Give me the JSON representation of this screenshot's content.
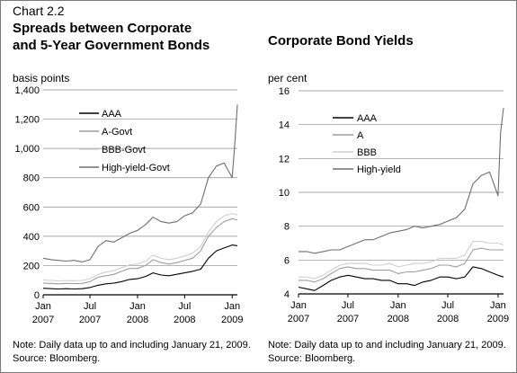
{
  "chart_number": "Chart 2.2",
  "notes": {
    "left": [
      "Note: Daily data up to and including January 21, 2009.",
      "Source: Bloomberg."
    ],
    "right": [
      "Note: Daily data up to and including January 21, 2009.",
      "Source: Bloomberg."
    ]
  },
  "chart_data": [
    {
      "type": "line",
      "title": [
        "Spreads between Corporate",
        "and 5-Year Government Bonds"
      ],
      "unit_label": "basis points",
      "ylim": [
        0,
        1400
      ],
      "y_ticks": [
        0,
        200,
        400,
        600,
        800,
        1000,
        1200,
        1400
      ],
      "y_tick_labels": [
        "0",
        "200",
        "400",
        "600",
        "800",
        "1,000",
        "1,200",
        "1,400"
      ],
      "xlim": [
        "2007-01-01",
        "2009-01-21"
      ],
      "x_ticks": [
        {
          "date": "2007-01-01",
          "line1": "Jan",
          "line2": "2007"
        },
        {
          "date": "2007-07-01",
          "line1": "Jul",
          "line2": "2007"
        },
        {
          "date": "2008-01-01",
          "line1": "Jan",
          "line2": "2008"
        },
        {
          "date": "2008-07-01",
          "line1": "Jul",
          "line2": "2008"
        },
        {
          "date": "2009-01-01",
          "line1": "Jan",
          "line2": "2009"
        }
      ],
      "grid": true,
      "legend_position": "top-left",
      "series": [
        {
          "name": "AAA",
          "color": "#000000",
          "x": [
            "2007-01-01",
            "2007-02-01",
            "2007-03-01",
            "2007-04-01",
            "2007-05-01",
            "2007-06-01",
            "2007-07-01",
            "2007-08-01",
            "2007-09-01",
            "2007-10-01",
            "2007-11-01",
            "2007-12-01",
            "2008-01-01",
            "2008-02-01",
            "2008-03-01",
            "2008-04-01",
            "2008-05-01",
            "2008-06-01",
            "2008-07-01",
            "2008-08-01",
            "2008-09-01",
            "2008-10-01",
            "2008-11-01",
            "2008-12-01",
            "2009-01-01",
            "2009-01-21"
          ],
          "y": [
            45,
            42,
            40,
            42,
            40,
            42,
            50,
            65,
            75,
            80,
            90,
            105,
            110,
            125,
            150,
            135,
            130,
            140,
            150,
            160,
            175,
            250,
            300,
            320,
            340,
            335
          ]
        },
        {
          "name": "A-Govt",
          "color": "#9e9e9e",
          "x": [
            "2007-01-01",
            "2007-02-01",
            "2007-03-01",
            "2007-04-01",
            "2007-05-01",
            "2007-06-01",
            "2007-07-01",
            "2007-08-01",
            "2007-09-01",
            "2007-10-01",
            "2007-11-01",
            "2007-12-01",
            "2008-01-01",
            "2008-02-01",
            "2008-03-01",
            "2008-04-01",
            "2008-05-01",
            "2008-06-01",
            "2008-07-01",
            "2008-08-01",
            "2008-09-01",
            "2008-10-01",
            "2008-11-01",
            "2008-12-01",
            "2009-01-01",
            "2009-01-21"
          ],
          "y": [
            80,
            78,
            75,
            78,
            76,
            78,
            90,
            120,
            130,
            140,
            160,
            180,
            180,
            200,
            240,
            220,
            210,
            220,
            235,
            250,
            300,
            400,
            460,
            500,
            520,
            510
          ]
        },
        {
          "name": "BBB-Govt",
          "color": "#cfcfcf",
          "x": [
            "2007-01-01",
            "2007-02-01",
            "2007-03-01",
            "2007-04-01",
            "2007-05-01",
            "2007-06-01",
            "2007-07-01",
            "2007-08-01",
            "2007-09-01",
            "2007-10-01",
            "2007-11-01",
            "2007-12-01",
            "2008-01-01",
            "2008-02-01",
            "2008-03-01",
            "2008-04-01",
            "2008-05-01",
            "2008-06-01",
            "2008-07-01",
            "2008-08-01",
            "2008-09-01",
            "2008-10-01",
            "2008-11-01",
            "2008-12-01",
            "2009-01-01",
            "2009-01-21"
          ],
          "y": [
            100,
            98,
            95,
            97,
            96,
            98,
            110,
            140,
            155,
            165,
            185,
            205,
            210,
            230,
            270,
            250,
            240,
            250,
            265,
            285,
            330,
            430,
            500,
            540,
            555,
            545
          ]
        },
        {
          "name": "High-yield-Govt",
          "color": "#6e6e6e",
          "x": [
            "2007-01-01",
            "2007-02-01",
            "2007-03-01",
            "2007-04-01",
            "2007-05-01",
            "2007-06-01",
            "2007-07-01",
            "2007-08-01",
            "2007-09-01",
            "2007-10-01",
            "2007-11-01",
            "2007-12-01",
            "2008-01-01",
            "2008-02-01",
            "2008-03-01",
            "2008-04-01",
            "2008-05-01",
            "2008-06-01",
            "2008-07-01",
            "2008-08-01",
            "2008-09-01",
            "2008-10-01",
            "2008-11-01",
            "2008-12-01",
            "2009-01-01",
            "2009-01-10",
            "2009-01-21"
          ],
          "y": [
            250,
            240,
            235,
            230,
            235,
            225,
            240,
            330,
            370,
            360,
            390,
            420,
            440,
            480,
            530,
            500,
            490,
            500,
            540,
            560,
            620,
            800,
            880,
            900,
            800,
            1000,
            1300
          ]
        }
      ]
    },
    {
      "type": "line",
      "title": [
        "Corporate Bond Yields"
      ],
      "unit_label": "per cent",
      "ylim": [
        4,
        16
      ],
      "y_ticks": [
        4,
        6,
        8,
        10,
        12,
        14,
        16
      ],
      "y_tick_labels": [
        "4",
        "6",
        "8",
        "10",
        "12",
        "14",
        "16"
      ],
      "xlim": [
        "2007-01-01",
        "2009-01-21"
      ],
      "x_ticks": [
        {
          "date": "2007-01-01",
          "line1": "Jan",
          "line2": "2007"
        },
        {
          "date": "2007-07-01",
          "line1": "Jul",
          "line2": "2007"
        },
        {
          "date": "2008-01-01",
          "line1": "Jan",
          "line2": "2008"
        },
        {
          "date": "2008-07-01",
          "line1": "Jul",
          "line2": "2008"
        },
        {
          "date": "2009-01-01",
          "line1": "Jan",
          "line2": "2009"
        }
      ],
      "grid": true,
      "legend_position": "top-left",
      "series": [
        {
          "name": "AAA",
          "color": "#000000",
          "x": [
            "2007-01-01",
            "2007-02-01",
            "2007-03-01",
            "2007-04-01",
            "2007-05-01",
            "2007-06-01",
            "2007-07-01",
            "2007-08-01",
            "2007-09-01",
            "2007-10-01",
            "2007-11-01",
            "2007-12-01",
            "2008-01-01",
            "2008-02-01",
            "2008-03-01",
            "2008-04-01",
            "2008-05-01",
            "2008-06-01",
            "2008-07-01",
            "2008-08-01",
            "2008-09-01",
            "2008-10-01",
            "2008-11-01",
            "2008-12-01",
            "2009-01-01",
            "2009-01-21"
          ],
          "y": [
            4.4,
            4.3,
            4.2,
            4.5,
            4.8,
            5.0,
            5.1,
            5.0,
            4.9,
            4.9,
            4.8,
            4.8,
            4.6,
            4.6,
            4.5,
            4.7,
            4.8,
            5.0,
            5.0,
            4.9,
            5.0,
            5.6,
            5.5,
            5.3,
            5.1,
            5.0
          ]
        },
        {
          "name": "A",
          "color": "#9e9e9e",
          "x": [
            "2007-01-01",
            "2007-02-01",
            "2007-03-01",
            "2007-04-01",
            "2007-05-01",
            "2007-06-01",
            "2007-07-01",
            "2007-08-01",
            "2007-09-01",
            "2007-10-01",
            "2007-11-01",
            "2007-12-01",
            "2008-01-01",
            "2008-02-01",
            "2008-03-01",
            "2008-04-01",
            "2008-05-01",
            "2008-06-01",
            "2008-07-01",
            "2008-08-01",
            "2008-09-01",
            "2008-10-01",
            "2008-11-01",
            "2008-12-01",
            "2009-01-01",
            "2009-01-21"
          ],
          "y": [
            4.8,
            4.8,
            4.7,
            4.9,
            5.2,
            5.5,
            5.6,
            5.5,
            5.5,
            5.4,
            5.4,
            5.4,
            5.2,
            5.3,
            5.3,
            5.4,
            5.5,
            5.7,
            5.7,
            5.6,
            5.8,
            6.6,
            6.7,
            6.6,
            6.6,
            6.6
          ]
        },
        {
          "name": "BBB",
          "color": "#cfcfcf",
          "x": [
            "2007-01-01",
            "2007-02-01",
            "2007-03-01",
            "2007-04-01",
            "2007-05-01",
            "2007-06-01",
            "2007-07-01",
            "2007-08-01",
            "2007-09-01",
            "2007-10-01",
            "2007-11-01",
            "2007-12-01",
            "2008-01-01",
            "2008-02-01",
            "2008-03-01",
            "2008-04-01",
            "2008-05-01",
            "2008-06-01",
            "2008-07-01",
            "2008-08-01",
            "2008-09-01",
            "2008-10-01",
            "2008-11-01",
            "2008-12-01",
            "2009-01-01",
            "2009-01-21"
          ],
          "y": [
            5.0,
            5.0,
            4.9,
            5.1,
            5.4,
            5.7,
            5.8,
            5.8,
            5.8,
            5.7,
            5.7,
            5.8,
            5.6,
            5.7,
            5.8,
            5.8,
            5.9,
            6.1,
            6.1,
            6.1,
            6.3,
            7.1,
            7.1,
            7.0,
            7.0,
            6.9
          ]
        },
        {
          "name": "High-yield",
          "color": "#6e6e6e",
          "x": [
            "2007-01-01",
            "2007-02-01",
            "2007-03-01",
            "2007-04-01",
            "2007-05-01",
            "2007-06-01",
            "2007-07-01",
            "2007-08-01",
            "2007-09-01",
            "2007-10-01",
            "2007-11-01",
            "2007-12-01",
            "2008-01-01",
            "2008-02-01",
            "2008-03-01",
            "2008-04-01",
            "2008-05-01",
            "2008-06-01",
            "2008-07-01",
            "2008-08-01",
            "2008-09-01",
            "2008-10-01",
            "2008-11-01",
            "2008-12-01",
            "2009-01-01",
            "2009-01-10",
            "2009-01-21"
          ],
          "y": [
            6.5,
            6.5,
            6.4,
            6.5,
            6.6,
            6.6,
            6.8,
            7.0,
            7.2,
            7.2,
            7.4,
            7.6,
            7.7,
            7.8,
            8.0,
            7.9,
            8.0,
            8.1,
            8.3,
            8.5,
            9.0,
            10.5,
            11.0,
            11.2,
            9.8,
            13.5,
            15.0
          ]
        }
      ]
    }
  ]
}
